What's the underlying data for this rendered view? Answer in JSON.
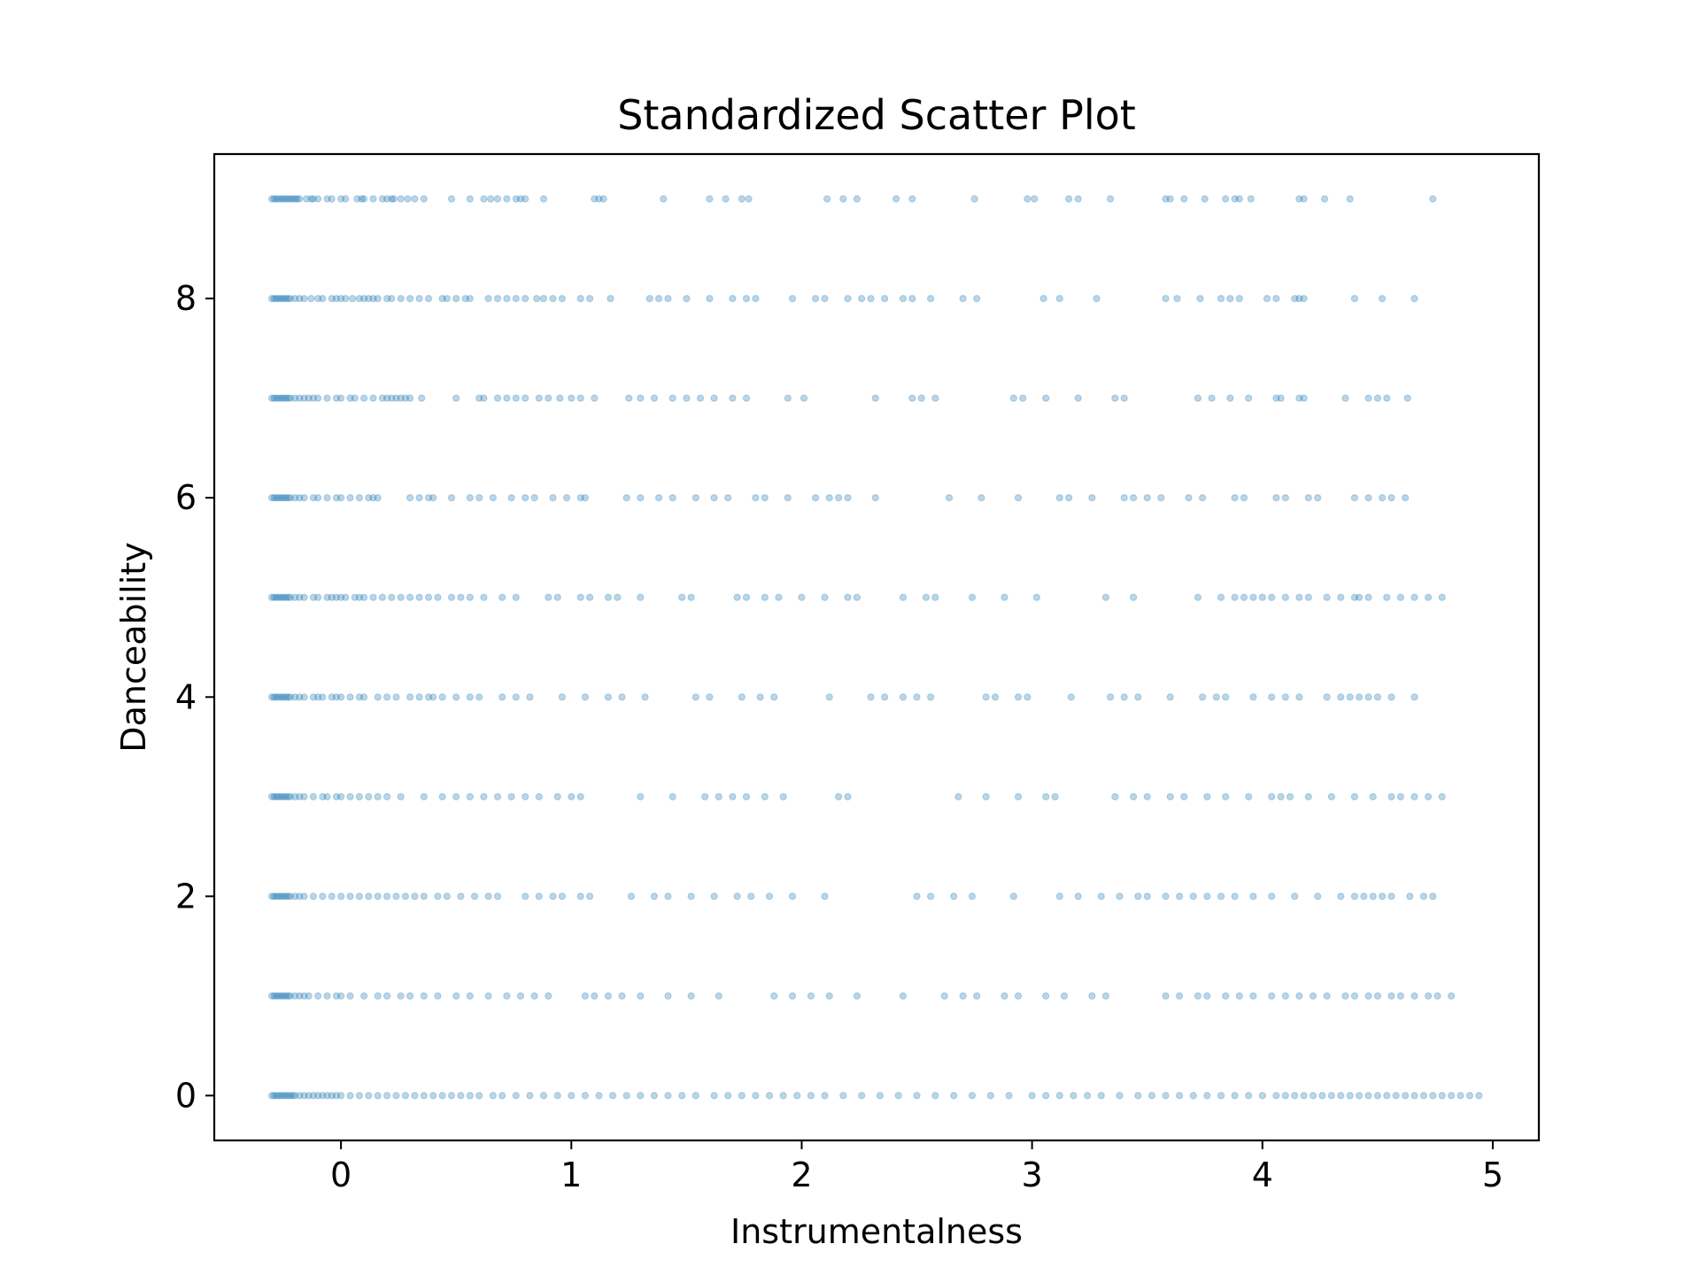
{
  "chart_data": {
    "type": "scatter",
    "title": "Standardized Scatter Plot",
    "xlabel": "Instrumentalness",
    "ylabel": "Danceability",
    "xlim": [
      -0.55,
      5.2
    ],
    "ylim": [
      -0.45,
      9.45
    ],
    "xticks": [
      0,
      1,
      2,
      3,
      4,
      5
    ],
    "yticks": [
      0,
      2,
      4,
      6,
      8
    ],
    "grid": false,
    "legend": "none",
    "marker_color": "#1f77b4",
    "marker_alpha": 0.3,
    "series": [
      {
        "points_by_level": [
          {
            "y": 9,
            "x": [
              -0.3,
              -0.29,
              -0.28,
              -0.27,
              -0.26,
              -0.25,
              -0.24,
              -0.23,
              -0.22,
              -0.21,
              -0.2,
              -0.19,
              -0.18,
              -0.15,
              -0.13,
              -0.12,
              -0.1,
              -0.06,
              -0.04,
              0.0,
              0.02,
              0.07,
              0.09,
              0.1,
              0.14,
              0.18,
              0.2,
              0.22,
              0.23,
              0.26,
              0.29,
              0.32,
              0.36,
              0.48,
              0.56,
              0.62,
              0.65,
              0.68,
              0.72,
              0.76,
              0.78,
              0.8,
              0.88,
              1.1,
              1.12,
              1.14,
              1.4,
              1.6,
              1.67,
              1.74,
              1.77,
              2.11,
              2.18,
              2.24,
              2.41,
              2.48,
              2.75,
              2.98,
              3.01,
              3.16,
              3.2,
              3.34,
              3.58,
              3.6,
              3.66,
              3.75,
              3.84,
              3.88,
              3.9,
              3.95,
              4.16,
              4.18,
              4.27,
              4.38,
              4.74
            ]
          },
          {
            "y": 8,
            "x": [
              -0.3,
              -0.29,
              -0.28,
              -0.27,
              -0.26,
              -0.25,
              -0.24,
              -0.23,
              -0.22,
              -0.2,
              -0.18,
              -0.16,
              -0.13,
              -0.1,
              -0.08,
              -0.04,
              -0.02,
              0.0,
              0.02,
              0.05,
              0.08,
              0.1,
              0.12,
              0.14,
              0.16,
              0.2,
              0.22,
              0.26,
              0.3,
              0.34,
              0.38,
              0.44,
              0.46,
              0.5,
              0.54,
              0.56,
              0.64,
              0.68,
              0.72,
              0.76,
              0.8,
              0.85,
              0.88,
              0.92,
              0.96,
              1.04,
              1.08,
              1.17,
              1.34,
              1.38,
              1.42,
              1.5,
              1.6,
              1.7,
              1.76,
              1.8,
              1.96,
              2.06,
              2.1,
              2.2,
              2.26,
              2.3,
              2.36,
              2.44,
              2.48,
              2.56,
              2.7,
              2.76,
              3.05,
              3.12,
              3.28,
              3.58,
              3.63,
              3.73,
              3.82,
              3.86,
              3.9,
              4.02,
              4.06,
              4.14,
              4.16,
              4.18,
              4.4,
              4.52,
              4.66
            ]
          },
          {
            "y": 7,
            "x": [
              -0.3,
              -0.29,
              -0.28,
              -0.27,
              -0.26,
              -0.25,
              -0.24,
              -0.23,
              -0.22,
              -0.2,
              -0.18,
              -0.16,
              -0.14,
              -0.12,
              -0.1,
              -0.06,
              -0.02,
              0.0,
              0.04,
              0.06,
              0.1,
              0.14,
              0.18,
              0.2,
              0.22,
              0.24,
              0.26,
              0.28,
              0.3,
              0.35,
              0.5,
              0.6,
              0.62,
              0.68,
              0.72,
              0.76,
              0.8,
              0.86,
              0.9,
              0.95,
              1.0,
              1.04,
              1.1,
              1.25,
              1.3,
              1.36,
              1.44,
              1.5,
              1.56,
              1.62,
              1.7,
              1.76,
              1.94,
              2.01,
              2.32,
              2.48,
              2.52,
              2.58,
              2.92,
              2.96,
              3.06,
              3.2,
              3.36,
              3.4,
              3.72,
              3.78,
              3.86,
              3.94,
              4.06,
              4.08,
              4.16,
              4.18,
              4.36,
              4.46,
              4.5,
              4.54,
              4.63
            ]
          },
          {
            "y": 6,
            "x": [
              -0.3,
              -0.29,
              -0.28,
              -0.27,
              -0.26,
              -0.25,
              -0.24,
              -0.23,
              -0.22,
              -0.2,
              -0.18,
              -0.16,
              -0.12,
              -0.1,
              -0.06,
              -0.02,
              0.0,
              0.04,
              0.08,
              0.12,
              0.14,
              0.16,
              0.3,
              0.34,
              0.38,
              0.4,
              0.48,
              0.56,
              0.6,
              0.66,
              0.74,
              0.8,
              0.84,
              0.92,
              0.98,
              1.04,
              1.06,
              1.24,
              1.3,
              1.38,
              1.44,
              1.54,
              1.62,
              1.68,
              1.8,
              1.84,
              1.94,
              2.06,
              2.12,
              2.16,
              2.2,
              2.32,
              2.64,
              2.78,
              2.94,
              3.12,
              3.16,
              3.26,
              3.4,
              3.44,
              3.5,
              3.56,
              3.68,
              3.74,
              3.88,
              3.92,
              4.06,
              4.1,
              4.2,
              4.24,
              4.4,
              4.46,
              4.52,
              4.56,
              4.62
            ]
          },
          {
            "y": 5,
            "x": [
              -0.3,
              -0.29,
              -0.28,
              -0.27,
              -0.26,
              -0.25,
              -0.24,
              -0.23,
              -0.22,
              -0.2,
              -0.18,
              -0.16,
              -0.12,
              -0.1,
              -0.06,
              -0.04,
              -0.02,
              0.0,
              0.02,
              0.06,
              0.08,
              0.1,
              0.14,
              0.18,
              0.22,
              0.26,
              0.3,
              0.34,
              0.38,
              0.42,
              0.48,
              0.52,
              0.56,
              0.62,
              0.7,
              0.76,
              0.9,
              0.94,
              1.04,
              1.08,
              1.16,
              1.2,
              1.3,
              1.48,
              1.52,
              1.72,
              1.76,
              1.84,
              1.9,
              2.0,
              2.1,
              2.2,
              2.24,
              2.44,
              2.54,
              2.58,
              2.74,
              2.88,
              3.02,
              3.32,
              3.44,
              3.72,
              3.82,
              3.88,
              3.92,
              3.96,
              4.0,
              4.04,
              4.1,
              4.16,
              4.2,
              4.28,
              4.34,
              4.4,
              4.42,
              4.46,
              4.54,
              4.6,
              4.66,
              4.72,
              4.78
            ]
          },
          {
            "y": 4,
            "x": [
              -0.3,
              -0.29,
              -0.28,
              -0.27,
              -0.26,
              -0.25,
              -0.24,
              -0.23,
              -0.22,
              -0.2,
              -0.18,
              -0.16,
              -0.12,
              -0.1,
              -0.08,
              -0.04,
              -0.02,
              0.0,
              0.04,
              0.08,
              0.1,
              0.16,
              0.2,
              0.24,
              0.3,
              0.34,
              0.38,
              0.4,
              0.44,
              0.5,
              0.56,
              0.6,
              0.7,
              0.76,
              0.82,
              0.96,
              1.06,
              1.16,
              1.22,
              1.32,
              1.54,
              1.6,
              1.74,
              1.82,
              1.88,
              2.12,
              2.3,
              2.36,
              2.44,
              2.5,
              2.56,
              2.8,
              2.84,
              2.94,
              2.98,
              3.17,
              3.34,
              3.4,
              3.46,
              3.6,
              3.74,
              3.8,
              3.84,
              3.96,
              4.04,
              4.1,
              4.16,
              4.28,
              4.34,
              4.38,
              4.42,
              4.46,
              4.5,
              4.56,
              4.66
            ]
          },
          {
            "y": 3,
            "x": [
              -0.3,
              -0.29,
              -0.28,
              -0.27,
              -0.26,
              -0.25,
              -0.24,
              -0.23,
              -0.22,
              -0.2,
              -0.18,
              -0.16,
              -0.12,
              -0.08,
              -0.06,
              -0.02,
              0.0,
              0.04,
              0.08,
              0.12,
              0.16,
              0.2,
              0.26,
              0.36,
              0.44,
              0.5,
              0.56,
              0.62,
              0.68,
              0.74,
              0.8,
              0.86,
              0.94,
              1.0,
              1.04,
              1.3,
              1.44,
              1.58,
              1.64,
              1.7,
              1.76,
              1.84,
              1.92,
              2.16,
              2.2,
              2.68,
              2.8,
              2.94,
              3.06,
              3.1,
              3.36,
              3.44,
              3.5,
              3.6,
              3.66,
              3.76,
              3.84,
              3.94,
              4.04,
              4.08,
              4.12,
              4.2,
              4.3,
              4.4,
              4.48,
              4.56,
              4.6,
              4.66,
              4.72,
              4.78
            ]
          },
          {
            "y": 2,
            "x": [
              -0.3,
              -0.29,
              -0.28,
              -0.27,
              -0.26,
              -0.25,
              -0.24,
              -0.23,
              -0.22,
              -0.2,
              -0.18,
              -0.16,
              -0.12,
              -0.08,
              -0.04,
              0.0,
              0.04,
              0.08,
              0.12,
              0.16,
              0.2,
              0.24,
              0.28,
              0.32,
              0.36,
              0.42,
              0.46,
              0.52,
              0.58,
              0.64,
              0.68,
              0.8,
              0.86,
              0.92,
              0.96,
              1.04,
              1.08,
              1.26,
              1.36,
              1.42,
              1.52,
              1.62,
              1.72,
              1.78,
              1.86,
              1.96,
              2.1,
              2.5,
              2.56,
              2.66,
              2.74,
              2.92,
              3.12,
              3.2,
              3.3,
              3.38,
              3.46,
              3.5,
              3.58,
              3.64,
              3.7,
              3.76,
              3.82,
              3.88,
              3.96,
              4.04,
              4.14,
              4.24,
              4.34,
              4.4,
              4.44,
              4.48,
              4.52,
              4.56,
              4.64,
              4.7,
              4.74
            ]
          },
          {
            "y": 1,
            "x": [
              -0.3,
              -0.29,
              -0.28,
              -0.27,
              -0.26,
              -0.25,
              -0.24,
              -0.23,
              -0.22,
              -0.2,
              -0.18,
              -0.16,
              -0.14,
              -0.1,
              -0.06,
              -0.02,
              0.0,
              0.04,
              0.1,
              0.16,
              0.2,
              0.26,
              0.3,
              0.36,
              0.42,
              0.5,
              0.56,
              0.64,
              0.72,
              0.78,
              0.84,
              0.9,
              1.06,
              1.1,
              1.16,
              1.22,
              1.3,
              1.42,
              1.52,
              1.64,
              1.88,
              1.96,
              2.04,
              2.12,
              2.24,
              2.44,
              2.62,
              2.7,
              2.76,
              2.88,
              2.94,
              3.06,
              3.14,
              3.26,
              3.32,
              3.58,
              3.64,
              3.72,
              3.76,
              3.84,
              3.9,
              3.96,
              4.04,
              4.1,
              4.16,
              4.22,
              4.28,
              4.36,
              4.4,
              4.46,
              4.5,
              4.56,
              4.6,
              4.66,
              4.72,
              4.76,
              4.82
            ]
          },
          {
            "y": 0,
            "x": [
              -0.3,
              -0.29,
              -0.28,
              -0.27,
              -0.26,
              -0.25,
              -0.24,
              -0.23,
              -0.22,
              -0.21,
              -0.2,
              -0.18,
              -0.16,
              -0.14,
              -0.12,
              -0.1,
              -0.08,
              -0.06,
              -0.04,
              -0.02,
              0.0,
              0.04,
              0.08,
              0.12,
              0.16,
              0.2,
              0.24,
              0.28,
              0.32,
              0.36,
              0.4,
              0.44,
              0.48,
              0.52,
              0.56,
              0.6,
              0.66,
              0.7,
              0.76,
              0.82,
              0.88,
              0.94,
              1.0,
              1.06,
              1.12,
              1.18,
              1.24,
              1.3,
              1.36,
              1.42,
              1.48,
              1.54,
              1.62,
              1.68,
              1.74,
              1.8,
              1.86,
              1.92,
              1.98,
              2.04,
              2.1,
              2.18,
              2.26,
              2.34,
              2.42,
              2.5,
              2.58,
              2.66,
              2.74,
              2.82,
              2.9,
              3.0,
              3.06,
              3.12,
              3.18,
              3.24,
              3.3,
              3.38,
              3.46,
              3.52,
              3.58,
              3.64,
              3.7,
              3.76,
              3.82,
              3.88,
              3.94,
              4.0,
              4.06,
              4.1,
              4.14,
              4.18,
              4.22,
              4.26,
              4.3,
              4.34,
              4.38,
              4.42,
              4.46,
              4.5,
              4.54,
              4.58,
              4.62,
              4.66,
              4.7,
              4.74,
              4.78,
              4.82,
              4.86,
              4.9,
              4.94
            ]
          }
        ]
      }
    ]
  }
}
